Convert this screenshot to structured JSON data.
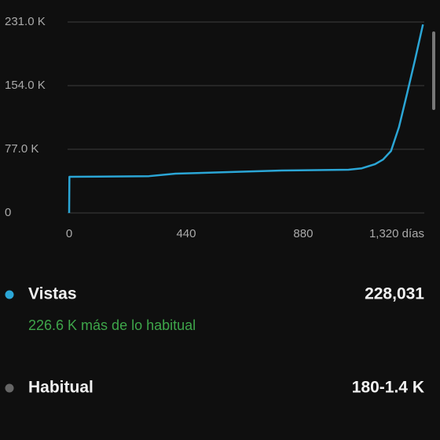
{
  "chart_data": {
    "type": "line",
    "x": [
      0,
      1,
      300,
      400,
      600,
      800,
      1050,
      1100,
      1150,
      1180,
      1210,
      1240,
      1270,
      1300,
      1330
    ],
    "series": [
      {
        "name": "Vistas",
        "color": "#2ba6d6",
        "values": [
          0,
          43700,
          44500,
          47500,
          49400,
          51300,
          52300,
          54000,
          59000,
          64600,
          75000,
          104000,
          144000,
          185000,
          228031
        ]
      }
    ],
    "xlim": [
      0,
      1335
    ],
    "ylim": [
      0,
      231000
    ],
    "xticks": [
      0,
      440,
      880,
      {
        "value": 1320,
        "label": "1,320 días"
      }
    ],
    "yticks": [
      {
        "value": 0,
        "label": "0"
      },
      {
        "value": 77000,
        "label": "77.0 K"
      },
      {
        "value": 154000,
        "label": "154.0 K"
      },
      {
        "value": 231000,
        "label": "231.0 K"
      }
    ],
    "grid": true
  },
  "summary": {
    "rows": [
      {
        "label": "Vistas",
        "value": "228,031",
        "note": "226.6 K más de lo habitual",
        "color": "#2ba6d6"
      },
      {
        "label": "Habitual",
        "value": "180-1.4 K",
        "color": "#666666"
      }
    ]
  }
}
